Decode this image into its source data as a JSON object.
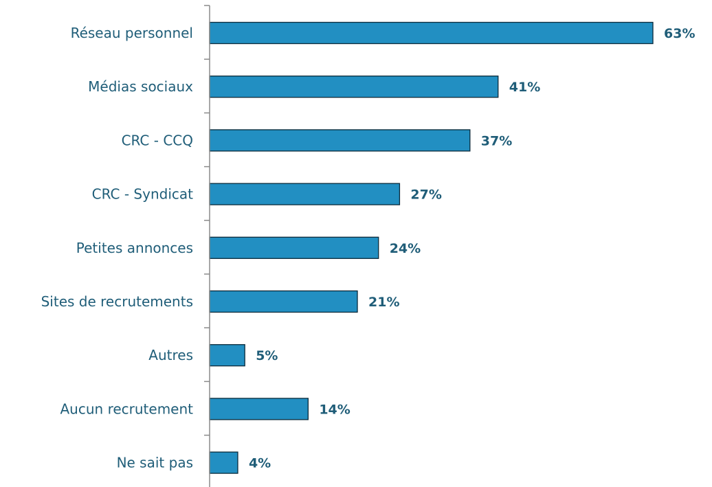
{
  "chart_data": {
    "type": "bar",
    "orientation": "horizontal",
    "categories": [
      "Réseau personnel",
      "Médias sociaux",
      "CRC - CCQ",
      "CRC - Syndicat",
      "Petites annonces",
      "Sites de recrutements",
      "Autres",
      "Aucun recrutement",
      "Ne sait pas"
    ],
    "values": [
      63,
      41,
      37,
      27,
      24,
      21,
      5,
      14,
      4
    ],
    "value_labels": [
      "63%",
      "41%",
      "37%",
      "27%",
      "24%",
      "21%",
      "5%",
      "14%",
      "4%"
    ],
    "unit": "%",
    "title": "",
    "xlabel": "",
    "ylabel": "",
    "xlim": [
      0,
      63
    ],
    "grid": false,
    "legend": "none",
    "colors": {
      "bar_fill": "#228fc2",
      "bar_stroke": "#0b2a3a",
      "text": "#1f5d78",
      "axis": "#8a8a8a"
    }
  }
}
